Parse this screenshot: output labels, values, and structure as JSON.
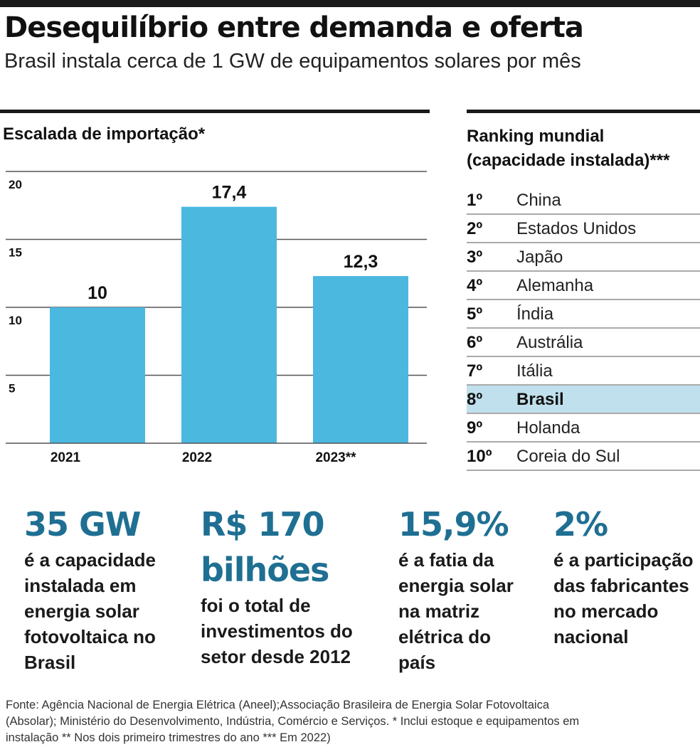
{
  "header": {
    "title": "Desequilíbrio entre demanda e oferta",
    "subtitle": "Brasil instala cerca de 1 GW de equipamentos solares por mês"
  },
  "colors": {
    "bar": "#4bb8e0",
    "grid": "#555555",
    "stat_accent": "#1f6f93",
    "highlight": "#bfe0ec"
  },
  "chart_data": {
    "type": "bar",
    "title": "Escalada de importação*",
    "categories": [
      "2021",
      "2022",
      "2023**"
    ],
    "values": [
      10,
      17.4,
      12.3
    ],
    "value_labels": [
      "10",
      "17,4",
      "12,3"
    ],
    "yticks": [
      5,
      10,
      15,
      20
    ],
    "ylim": [
      0,
      20
    ],
    "grid": true,
    "xlabel": "",
    "ylabel": ""
  },
  "ranking": {
    "title_line1": "Ranking mundial",
    "title_line2": "(capacidade instalada)***",
    "items": [
      {
        "pos": "1º",
        "country": "China"
      },
      {
        "pos": "2º",
        "country": "Estados Unidos"
      },
      {
        "pos": "3º",
        "country": "Japão"
      },
      {
        "pos": "4º",
        "country": "Alemanha"
      },
      {
        "pos": "5º",
        "country": "Índia"
      },
      {
        "pos": "6º",
        "country": "Austrália"
      },
      {
        "pos": "7º",
        "country": "Itália"
      },
      {
        "pos": "8º",
        "country": "Brasil"
      },
      {
        "pos": "9º",
        "country": "Holanda"
      },
      {
        "pos": "10º",
        "country": "Coreia do Sul"
      }
    ],
    "highlight_index": 7
  },
  "stats": [
    {
      "big": "35 GW",
      "desc": [
        "é a capacidade",
        "instalada em",
        "energia solar",
        "fotovoltaica no",
        "Brasil"
      ]
    },
    {
      "big": "R$ 170 bilhões",
      "desc": [
        "foi o total de",
        "investimentos do",
        "setor desde 2012"
      ]
    },
    {
      "big": "15,9%",
      "desc": [
        "é a fatia da",
        "energia solar",
        "na matriz",
        "elétrica do",
        "país"
      ]
    },
    {
      "big": "2%",
      "desc": [
        "é a participação",
        "das fabricantes",
        "no mercado",
        "nacional"
      ]
    }
  ],
  "footer": {
    "line1": "Fonte: Agência Nacional de Energia Elétrica (Aneel);Associação Brasileira de Energia Solar Fotovoltaica",
    "line2": "(Absolar); Ministério do Desenvolvimento, Indústria, Comércio e Serviços. * Inclui estoque e equipamentos em",
    "line3": "instalação ** Nos dois primeiro trimestres do ano  *** Em 2022)"
  }
}
